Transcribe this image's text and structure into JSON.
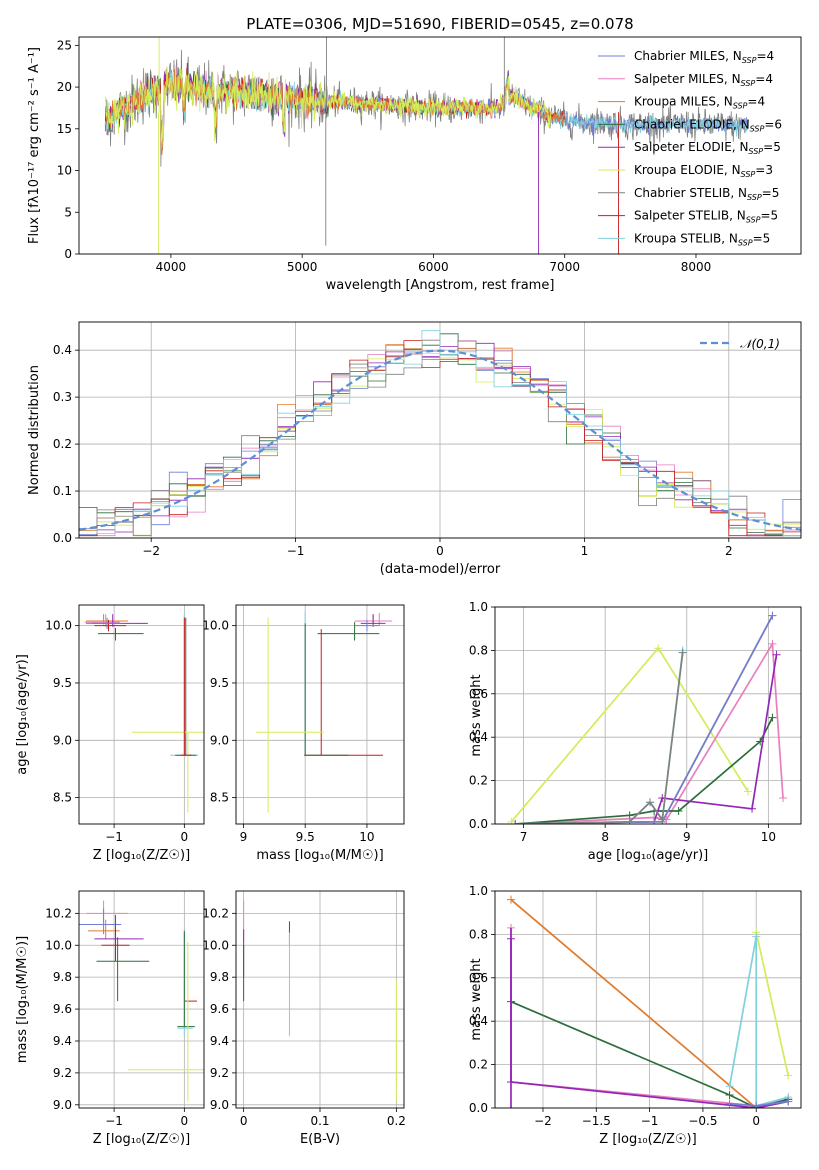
{
  "figure_title": "PLATE=0306, MJD=51690, FIBERID=0545, z=0.078",
  "models": [
    {
      "name": "Chabrier MILES",
      "nssp": "4",
      "color": "#6f7fd6"
    },
    {
      "name": "Salpeter MILES",
      "nssp": "4",
      "color": "#e87fbd"
    },
    {
      "name": "Kroupa MILES",
      "nssp": "4",
      "color": "#e07b2c"
    },
    {
      "name": "Chabrier ELODIE",
      "nssp": "6",
      "color": "#2c6e3a"
    },
    {
      "name": "Salpeter ELODIE",
      "nssp": "5",
      "color": "#9428b6"
    },
    {
      "name": "Kroupa ELODIE",
      "nssp": "3",
      "color": "#d2ec5a"
    },
    {
      "name": "Chabrier STELIB",
      "nssp": "5",
      "color": "#808080"
    },
    {
      "name": "Salpeter STELIB",
      "nssp": "5",
      "color": "#c81c1c"
    },
    {
      "name": "Kroupa STELIB",
      "nssp": "5",
      "color": "#7fd1dd"
    }
  ],
  "nssp_label_prefix": "N",
  "nssp_label_sub": "SSP",
  "chart_data": [
    {
      "type": "line",
      "xlabel": "wavelength [Angstrom, rest frame]",
      "ylabel": "Flux [fλ10⁻¹⁷ erg cm⁻² s⁻¹ A⁻¹]",
      "xlim": [
        3300,
        8800
      ],
      "ylim": [
        0,
        26
      ],
      "xticks": [
        4000,
        5000,
        6000,
        7000,
        8000
      ],
      "yticks": [
        0,
        5,
        10,
        15,
        20,
        25
      ],
      "series_note": "spectra of 9 model fits, x from ~3500 to ~8400 A, flux ~15-22",
      "continuum": [
        [
          3500,
          16
        ],
        [
          3800,
          19
        ],
        [
          4000,
          20.5
        ],
        [
          4300,
          19.5
        ],
        [
          4600,
          19.3
        ],
        [
          5000,
          18.5
        ],
        [
          5500,
          18
        ],
        [
          6000,
          17.5
        ],
        [
          6500,
          17.5
        ],
        [
          6600,
          19
        ],
        [
          6800,
          17
        ],
        [
          7000,
          16
        ],
        [
          7500,
          15.5
        ],
        [
          8000,
          15.5
        ],
        [
          8400,
          15.3
        ]
      ],
      "grid": false,
      "legend": "top-right"
    },
    {
      "type": "line",
      "xlabel": "(data-model)/error",
      "ylabel": "Normed distribution",
      "xlim": [
        -2.5,
        2.5
      ],
      "ylim": [
        0,
        0.46
      ],
      "xticks": [
        -2,
        -1,
        0,
        1,
        2
      ],
      "yticks": [
        0.0,
        0.1,
        0.2,
        0.3,
        0.4
      ],
      "reference_label": "𝒩(0,1)",
      "grid": true,
      "legend": "top-right"
    },
    {
      "type": "scatter",
      "xlabel": "Z [log₁₀(Z/Z☉)]",
      "ylabel": "age  [log₁₀(age/yr)]",
      "xlim": [
        -1.5,
        0.28
      ],
      "ylim": [
        8.27,
        10.18
      ],
      "xticks": [
        -1,
        0
      ],
      "yticks": [
        8.5,
        9.0,
        9.5,
        10.0
      ],
      "grid": true
    },
    {
      "type": "scatter",
      "xlabel": "mass [log₁₀(M/M☉)]",
      "ylabel": "",
      "xlim": [
        8.94,
        10.3
      ],
      "ylim": [
        8.27,
        10.18
      ],
      "xticks": [
        9.0,
        9.5,
        10.0
      ],
      "yticks": [
        8.5,
        9.0,
        9.5,
        10.0
      ],
      "grid": true
    },
    {
      "type": "line",
      "xlabel": "age  [log₁₀(age/yr)]",
      "ylabel": "mass weight",
      "xlim": [
        6.65,
        10.4
      ],
      "ylim": [
        0,
        1.0
      ],
      "xticks": [
        7,
        8,
        9,
        10
      ],
      "yticks": [
        0.0,
        0.2,
        0.4,
        0.6,
        0.8,
        1.0
      ],
      "grid": true
    },
    {
      "type": "scatter",
      "xlabel": "Z [log₁₀(Z/Z☉)]",
      "ylabel": "mass [log₁₀(M/M☉)]",
      "xlim": [
        -1.5,
        0.28
      ],
      "ylim": [
        8.98,
        10.34
      ],
      "xticks": [
        -1,
        0
      ],
      "yticks": [
        9.0,
        9.2,
        9.4,
        9.6,
        9.8,
        10.0,
        10.2
      ],
      "grid": true
    },
    {
      "type": "scatter",
      "xlabel": "E(B-V)",
      "ylabel": "",
      "xlim": [
        -0.01,
        0.21
      ],
      "ylim": [
        8.98,
        10.34
      ],
      "xticks": [
        0.0,
        0.1,
        0.2
      ],
      "yticks": [
        9.0,
        9.2,
        9.4,
        9.6,
        9.8,
        10.0,
        10.2
      ],
      "grid": true
    },
    {
      "type": "line",
      "xlabel": "Z [log₁₀(Z/Z☉)]",
      "ylabel": "mass weight",
      "xlim": [
        -2.45,
        0.42
      ],
      "ylim": [
        0,
        1.0
      ],
      "xticks": [
        -2.0,
        -1.5,
        -1.0,
        -0.5,
        0.0
      ],
      "yticks": [
        0.0,
        0.2,
        0.4,
        0.6,
        0.8,
        1.0
      ],
      "grid": true
    }
  ]
}
